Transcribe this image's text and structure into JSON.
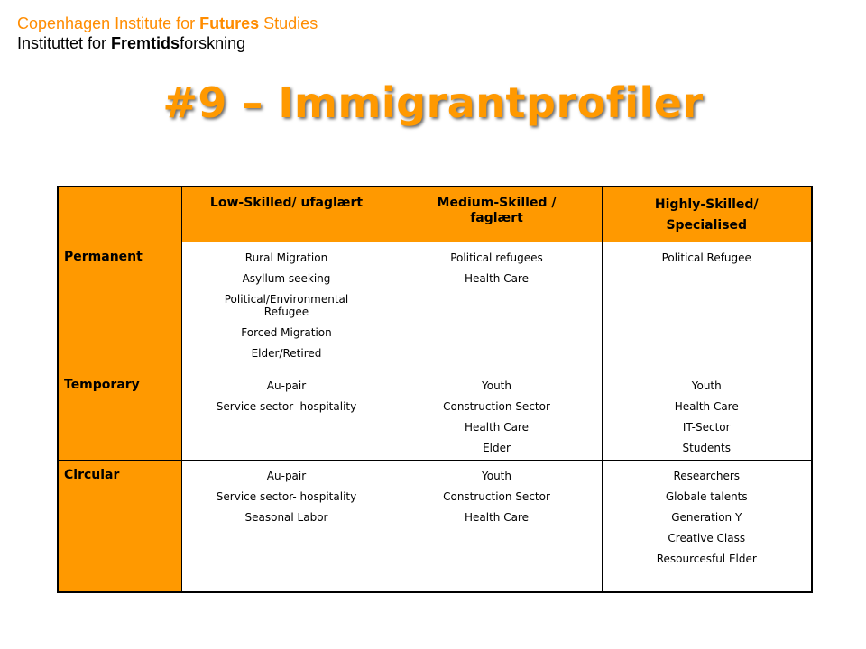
{
  "header": {
    "line1": {
      "pre": "Copenhagen Institute for ",
      "bold": "Futures",
      "post": " Studies"
    },
    "line2": {
      "pre": "Instituttet for ",
      "bold": "Fremtids",
      "post": "forskning"
    }
  },
  "title": "#9 – Immigrantprofiler",
  "table": {
    "columns": [
      "Low-Skilled/ ufaglært",
      "Medium-Skilled / faglært",
      "Highly-Skilled/ Specialised"
    ],
    "column_lines": [
      [
        "Low-Skilled/ ufaglært"
      ],
      [
        "Medium-Skilled /",
        "faglært"
      ],
      [
        "Highly-Skilled/",
        "Specialised"
      ]
    ],
    "rows": [
      {
        "label": "Permanent",
        "cells": [
          [
            "Rural Migration",
            "Asyllum seeking",
            "Political/Environmental Refugee",
            "Forced Migration",
            "Elder/Retired"
          ],
          [
            "Political refugees",
            "Health Care"
          ],
          [
            "Political Refugee"
          ]
        ]
      },
      {
        "label": "Temporary",
        "cells": [
          [
            "Au-pair",
            "Service sector- hospitality"
          ],
          [
            "Youth",
            "Construction Sector",
            "Health Care",
            "Elder"
          ],
          [
            "Youth",
            "Health Care",
            "IT-Sector",
            "Students"
          ]
        ]
      },
      {
        "label": "Circular",
        "cells": [
          [
            "Au-pair",
            "Service sector- hospitality",
            "Seasonal Labor"
          ],
          [
            "Youth",
            "Construction Sector",
            "Health Care"
          ],
          [
            "Researchers",
            "Globale talents",
            "Generation Y",
            "Creative Class",
            "Resourcesful Elder"
          ]
        ]
      }
    ]
  },
  "colors": {
    "accent": "#ff9900",
    "header_orange": "#ff8c00"
  }
}
